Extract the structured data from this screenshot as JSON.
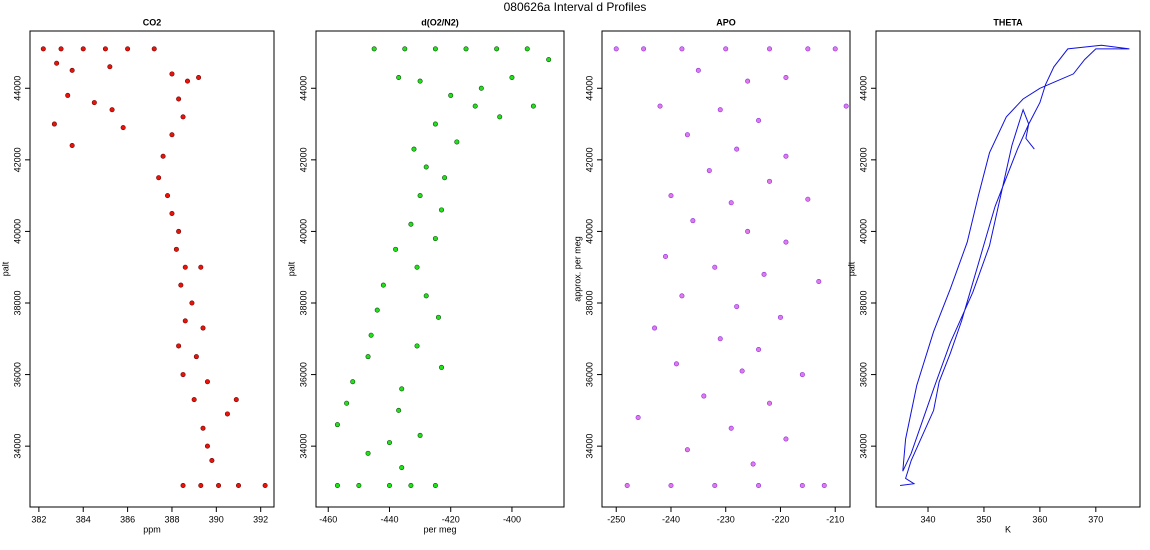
{
  "title": "080626a   Interval d Profiles",
  "chart_data": [
    {
      "type": "scatter",
      "title": "CO2",
      "x_label": "ppm",
      "y_label": "palt",
      "color": "#e8140a",
      "stroke": "#6b0000",
      "xlim": [
        381.6,
        392.6
      ],
      "xticks": [
        382,
        384,
        386,
        388,
        390,
        392
      ],
      "ylim": [
        32300,
        45600
      ],
      "yticks": [
        34000,
        36000,
        38000,
        40000,
        42000,
        44000
      ],
      "x": [
        382.2,
        383.0,
        384.0,
        385.0,
        386.0,
        387.2,
        382.8,
        383.5,
        385.2,
        383.3,
        384.5,
        385.3,
        382.7,
        383.5,
        385.8,
        388.0,
        388.7,
        389.2,
        388.3,
        388.5,
        388.0,
        387.6,
        387.4,
        387.8,
        388.0,
        388.3,
        388.2,
        388.6,
        389.3,
        388.4,
        388.9,
        388.6,
        389.4,
        388.3,
        389.1,
        388.5,
        389.6,
        389.0,
        390.9,
        390.5,
        389.4,
        389.6,
        389.8,
        388.5,
        389.3,
        390.1,
        391.0,
        392.2
      ],
      "y": [
        45100,
        45100,
        45100,
        45100,
        45100,
        45100,
        44700,
        44500,
        44600,
        43800,
        43600,
        43400,
        43000,
        42400,
        42900,
        44400,
        44200,
        44300,
        43700,
        43200,
        42700,
        42100,
        41500,
        41000,
        40500,
        40000,
        39500,
        39000,
        39000,
        38500,
        38000,
        37500,
        37300,
        36800,
        36500,
        36000,
        35800,
        35300,
        35300,
        34900,
        34500,
        34000,
        33600,
        32900,
        32900,
        32900,
        32900,
        32900
      ]
    },
    {
      "type": "scatter",
      "title": "d(O2/N2)",
      "x_label": "per meg",
      "y_label": "palt",
      "color": "#22e01a",
      "stroke": "#0a4a0a",
      "xlim": [
        -464,
        -383
      ],
      "xticks": [
        -460,
        -440,
        -420,
        -400
      ],
      "ylim": [
        32300,
        45600
      ],
      "yticks": [
        34000,
        36000,
        38000,
        40000,
        42000,
        44000
      ],
      "x": [
        -445,
        -435,
        -425,
        -415,
        -405,
        -395,
        -388,
        -400,
        -410,
        -437,
        -430,
        -420,
        -412,
        -404,
        -393,
        -425,
        -418,
        -432,
        -428,
        -422,
        -430,
        -423,
        -433,
        -425,
        -438,
        -431,
        -442,
        -428,
        -444,
        -424,
        -446,
        -431,
        -447,
        -423,
        -452,
        -436,
        -454,
        -437,
        -457,
        -440,
        -430,
        -447,
        -436,
        -457,
        -450,
        -440,
        -433,
        -425
      ],
      "y": [
        45100,
        45100,
        45100,
        45100,
        45100,
        45100,
        44800,
        44300,
        44000,
        44300,
        44200,
        43800,
        43500,
        43200,
        43500,
        43000,
        42500,
        42300,
        41800,
        41500,
        41000,
        40600,
        40200,
        39800,
        39500,
        39000,
        38500,
        38200,
        37800,
        37600,
        37100,
        36800,
        36500,
        36200,
        35800,
        35600,
        35200,
        35000,
        34600,
        34100,
        34300,
        33800,
        33400,
        32900,
        32900,
        32900,
        32900,
        32900
      ]
    },
    {
      "type": "scatter",
      "title": "APO",
      "x_label": "",
      "y_label": "approx. per meg",
      "color": "#e07ae8",
      "stroke": "#8a2be2",
      "xlim": [
        -252.6,
        -207.3
      ],
      "xticks": [
        -250,
        -240,
        -230,
        -220,
        -210
      ],
      "ylim": [
        32300,
        45600
      ],
      "yticks": [
        34000,
        36000,
        38000,
        40000,
        42000,
        44000
      ],
      "x": [
        -250,
        -245,
        -238,
        -230,
        -222,
        -215,
        -210,
        -235,
        -226,
        -219,
        -242,
        -231,
        -224,
        -208,
        -237,
        -228,
        -219,
        -233,
        -222,
        -240,
        -229,
        -215,
        -236,
        -226,
        -219,
        -241,
        -232,
        -223,
        -213,
        -238,
        -228,
        -220,
        -243,
        -231,
        -224,
        -239,
        -227,
        -216,
        -234,
        -222,
        -246,
        -229,
        -219,
        -237,
        -225,
        -248,
        -240,
        -232,
        -224,
        -216,
        -212
      ],
      "y": [
        45100,
        45100,
        45100,
        45100,
        45100,
        45100,
        45100,
        44500,
        44200,
        44300,
        43500,
        43400,
        43100,
        43500,
        42700,
        42300,
        42100,
        41700,
        41400,
        41000,
        40800,
        40900,
        40300,
        40000,
        39700,
        39300,
        39000,
        38800,
        38600,
        38200,
        37900,
        37600,
        37300,
        37000,
        36700,
        36300,
        36100,
        36000,
        35400,
        35200,
        34800,
        34500,
        34200,
        33900,
        33500,
        32900,
        32900,
        32900,
        32900,
        32900,
        32900
      ]
    },
    {
      "type": "line",
      "title": "THETA",
      "x_label": "K",
      "y_label": "palt",
      "color": "#1010e0",
      "xlim": [
        330.7,
        377.9
      ],
      "xticks": [
        340,
        350,
        360,
        370
      ],
      "ylim": [
        32300,
        45600
      ],
      "yticks": [
        34000,
        36000,
        38000,
        40000,
        42000,
        44000
      ],
      "x": [
        335,
        337.5,
        336,
        337,
        339,
        341,
        342,
        344,
        346,
        347.5,
        349,
        350.5,
        352,
        354,
        356,
        358,
        360,
        361,
        362.5,
        365,
        371,
        376,
        370,
        368,
        366,
        363,
        360,
        357,
        354,
        351,
        349,
        347,
        344,
        341,
        338,
        336,
        335.5,
        337,
        341,
        344,
        348,
        351,
        353,
        355,
        357,
        358,
        357.5,
        359
      ],
      "y": [
        32900,
        32950,
        33100,
        33600,
        34300,
        35000,
        35800,
        36600,
        37500,
        38300,
        39100,
        39900,
        40700,
        41500,
        42300,
        43000,
        43600,
        44100,
        44600,
        45100,
        45200,
        45100,
        45100,
        44800,
        44400,
        44200,
        44000,
        43700,
        43200,
        42200,
        41000,
        39700,
        38400,
        37200,
        35700,
        34200,
        33300,
        33800,
        35600,
        36900,
        38300,
        39600,
        41000,
        42400,
        43400,
        43000,
        42600,
        42300
      ]
    }
  ]
}
